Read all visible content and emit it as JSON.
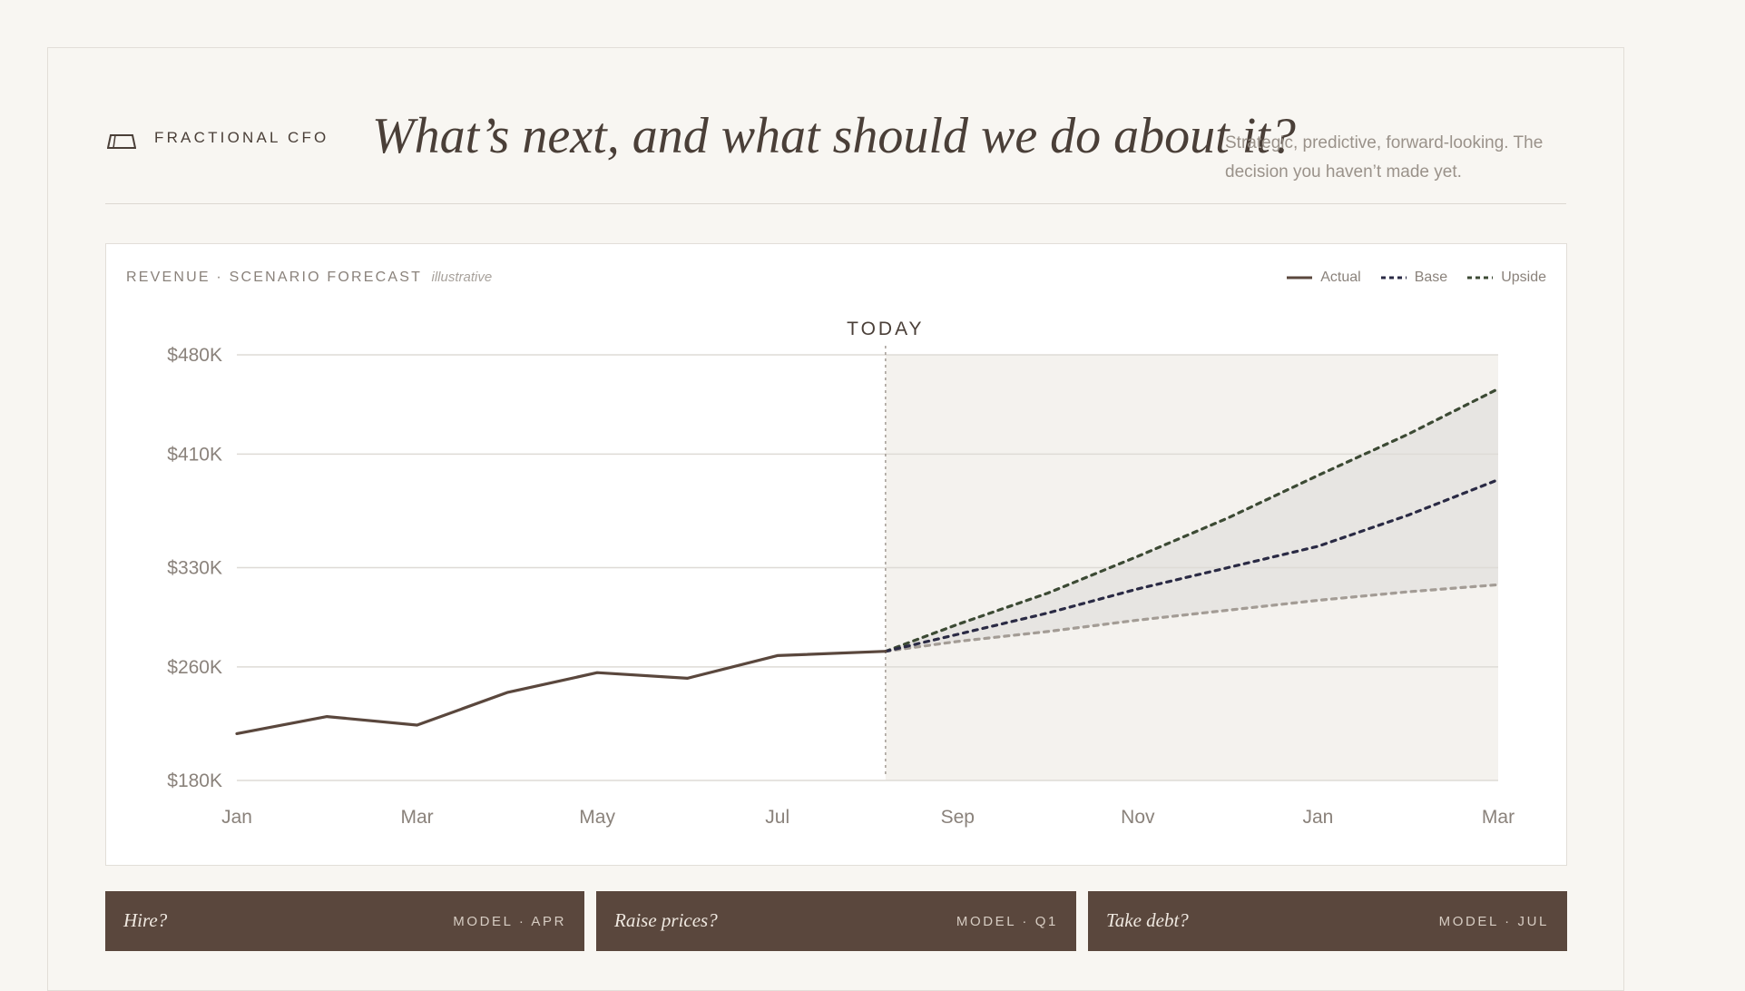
{
  "header": {
    "brand": "FRACTIONAL CFO",
    "headline": "What’s next, and what should we do about it?",
    "subtitle": "Strategic, predictive, forward-looking. The decision you haven’t made yet."
  },
  "chart_header": {
    "title": "REVENUE · SCENARIO FORECAST",
    "note": "illustrative"
  },
  "legend": [
    {
      "label": "Actual",
      "color": "#5a473d",
      "style": "solid"
    },
    {
      "label": "Base",
      "color": "#2a2a44",
      "style": "dashed"
    },
    {
      "label": "Upside",
      "color": "#3c4a34",
      "style": "dashed"
    }
  ],
  "chart_data": {
    "type": "line",
    "title": "REVENUE · SCENARIO FORECAST",
    "marker_label": "TODAY",
    "marker_x": 7.2,
    "x_ticks": [
      {
        "x": 0,
        "label": "Jan"
      },
      {
        "x": 2,
        "label": "Mar"
      },
      {
        "x": 4,
        "label": "May"
      },
      {
        "x": 6,
        "label": "Jul"
      },
      {
        "x": 8,
        "label": "Sep"
      },
      {
        "x": 10,
        "label": "Nov"
      },
      {
        "x": 12,
        "label": "Jan"
      },
      {
        "x": 14,
        "label": "Mar"
      }
    ],
    "y_ticks": [
      {
        "value": 180,
        "label": "$180K"
      },
      {
        "value": 260,
        "label": "$260K"
      },
      {
        "value": 330,
        "label": "$330K"
      },
      {
        "value": 410,
        "label": "$410K"
      },
      {
        "value": 480,
        "label": "$480K"
      }
    ],
    "xlim": [
      0,
      14
    ],
    "ylim": [
      180,
      480
    ],
    "series": [
      {
        "name": "Actual",
        "color": "#5a473d",
        "dashed": false,
        "points": [
          [
            0,
            213
          ],
          [
            1,
            225
          ],
          [
            2,
            219
          ],
          [
            3,
            242
          ],
          [
            4,
            256
          ],
          [
            5,
            252
          ],
          [
            6,
            268
          ],
          [
            7.2,
            271
          ]
        ]
      },
      {
        "name": "Base",
        "color": "#2a2a44",
        "dashed": true,
        "points": [
          [
            7.2,
            271
          ],
          [
            8,
            283
          ],
          [
            9,
            298
          ],
          [
            10,
            315
          ],
          [
            11,
            330
          ],
          [
            12,
            345
          ],
          [
            13,
            367
          ],
          [
            14,
            392
          ]
        ]
      },
      {
        "name": "Upside",
        "color": "#3c4a34",
        "dashed": true,
        "points": [
          [
            7.2,
            271
          ],
          [
            8,
            290
          ],
          [
            9,
            312
          ],
          [
            10,
            338
          ],
          [
            11,
            365
          ],
          [
            12,
            395
          ],
          [
            13,
            424
          ],
          [
            14,
            456
          ]
        ]
      },
      {
        "color": "#a39c95",
        "dashed": true,
        "points": [
          [
            7.2,
            271
          ],
          [
            8,
            278
          ],
          [
            9,
            285
          ],
          [
            10,
            293
          ],
          [
            11,
            300
          ],
          [
            12,
            307
          ],
          [
            13,
            313
          ],
          [
            14,
            318
          ]
        ]
      }
    ]
  },
  "actions": [
    {
      "label": "Hire?",
      "meta": "MODEL · APR"
    },
    {
      "label": "Raise prices?",
      "meta": "MODEL · Q1"
    },
    {
      "label": "Take debt?",
      "meta": "MODEL · JUL"
    }
  ]
}
